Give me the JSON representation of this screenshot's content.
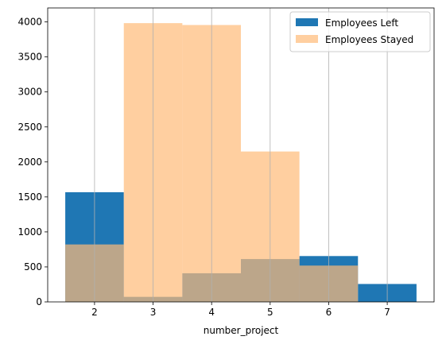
{
  "chart_data": {
    "type": "bar",
    "title": "",
    "xlabel": "number_project",
    "ylabel": "",
    "xlim": [
      1.2,
      7.8
    ],
    "ylim": [
      0,
      4200
    ],
    "x_ticks": [
      "2",
      "3",
      "4",
      "5",
      "6",
      "7"
    ],
    "y_ticks": [
      "0",
      "500",
      "1000",
      "1500",
      "2000",
      "2500",
      "3000",
      "3500",
      "4000"
    ],
    "grid": "vertical",
    "legend_position": "top-right",
    "bins": [
      2,
      3,
      4,
      5,
      6,
      7
    ],
    "series": [
      {
        "name": "Employees Left",
        "color": "#1f77b4",
        "alpha": 1.0,
        "values": [
          1567,
          72,
          409,
          612,
          655,
          256
        ]
      },
      {
        "name": "Employees Stayed",
        "color": "#ffbb78",
        "alpha": 0.7,
        "values": [
          821,
          3983,
          3956,
          2149,
          519,
          0
        ]
      }
    ]
  }
}
